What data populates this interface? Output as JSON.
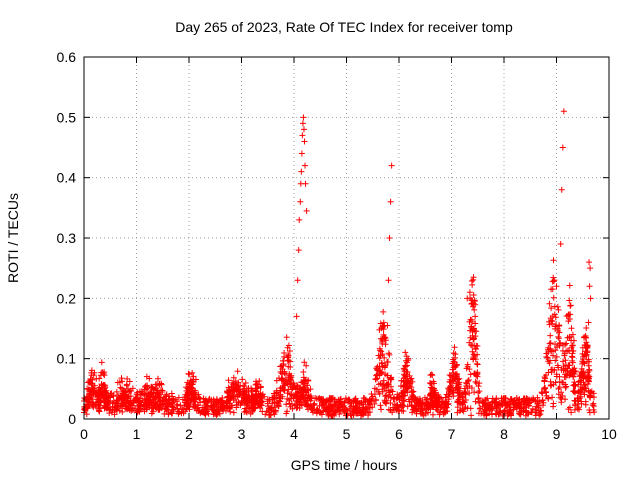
{
  "chart_data": {
    "type": "scatter",
    "title": "Day 265 of 2023, Rate Of TEC Index for receiver tomp",
    "xlabel": "GPS time / hours",
    "ylabel": "ROTI / TECUs",
    "xlim": [
      0,
      10
    ],
    "ylim": [
      0,
      0.6
    ],
    "xticks": [
      0,
      1,
      2,
      3,
      4,
      5,
      6,
      7,
      8,
      9,
      10
    ],
    "yticks": [
      0,
      0.1,
      0.2,
      0.3,
      0.4,
      0.5,
      0.6
    ],
    "xtick_labels": [
      "0",
      "1",
      "2",
      "3",
      "4",
      "5",
      "6",
      "7",
      "8",
      "9",
      "10"
    ],
    "ytick_labels": [
      "0",
      "0.1",
      "0.2",
      "0.3",
      "0.4",
      "0.5",
      "0.6"
    ],
    "grid": true,
    "marker": "+",
    "marker_color": "#ff0000",
    "baseline": {
      "x_range": [
        0,
        9.72
      ],
      "y_range": [
        0.005,
        0.035
      ]
    },
    "bursts": [
      {
        "center": 0.15,
        "width": 0.15,
        "height": 0.05
      },
      {
        "center": 0.35,
        "width": 0.08,
        "height": 0.06
      },
      {
        "center": 0.75,
        "width": 0.2,
        "height": 0.04
      },
      {
        "center": 1.3,
        "width": 0.3,
        "height": 0.04
      },
      {
        "center": 2.05,
        "width": 0.1,
        "height": 0.065
      },
      {
        "center": 2.9,
        "width": 0.2,
        "height": 0.06
      },
      {
        "center": 3.3,
        "width": 0.1,
        "height": 0.055
      },
      {
        "center": 3.85,
        "width": 0.15,
        "height": 0.12
      },
      {
        "center": 4.2,
        "width": 0.1,
        "height": 0.07
      },
      {
        "center": 5.7,
        "width": 0.15,
        "height": 0.15
      },
      {
        "center": 6.15,
        "width": 0.1,
        "height": 0.1
      },
      {
        "center": 6.65,
        "width": 0.1,
        "height": 0.05
      },
      {
        "center": 7.05,
        "width": 0.1,
        "height": 0.11
      },
      {
        "center": 7.4,
        "width": 0.1,
        "height": 0.23
      },
      {
        "center": 8.95,
        "width": 0.15,
        "height": 0.24
      },
      {
        "center": 9.25,
        "width": 0.1,
        "height": 0.2
      },
      {
        "center": 9.55,
        "width": 0.1,
        "height": 0.14
      }
    ],
    "outliers": [
      {
        "x": 4.05,
        "y": 0.17
      },
      {
        "x": 4.07,
        "y": 0.23
      },
      {
        "x": 4.09,
        "y": 0.28
      },
      {
        "x": 4.1,
        "y": 0.33
      },
      {
        "x": 4.12,
        "y": 0.36
      },
      {
        "x": 4.13,
        "y": 0.39
      },
      {
        "x": 4.14,
        "y": 0.41
      },
      {
        "x": 4.15,
        "y": 0.44
      },
      {
        "x": 4.16,
        "y": 0.47
      },
      {
        "x": 4.17,
        "y": 0.49
      },
      {
        "x": 4.18,
        "y": 0.5
      },
      {
        "x": 4.19,
        "y": 0.48
      },
      {
        "x": 4.2,
        "y": 0.46
      },
      {
        "x": 4.21,
        "y": 0.42
      },
      {
        "x": 4.22,
        "y": 0.39
      },
      {
        "x": 4.24,
        "y": 0.345
      },
      {
        "x": 5.8,
        "y": 0.23
      },
      {
        "x": 5.82,
        "y": 0.3
      },
      {
        "x": 5.84,
        "y": 0.36
      },
      {
        "x": 5.86,
        "y": 0.42
      },
      {
        "x": 5.78,
        "y": 0.155
      },
      {
        "x": 7.3,
        "y": 0.2
      },
      {
        "x": 7.35,
        "y": 0.21
      },
      {
        "x": 7.42,
        "y": 0.235
      },
      {
        "x": 7.45,
        "y": 0.17
      },
      {
        "x": 9.08,
        "y": 0.29
      },
      {
        "x": 9.1,
        "y": 0.38
      },
      {
        "x": 9.12,
        "y": 0.45
      },
      {
        "x": 9.14,
        "y": 0.51
      },
      {
        "x": 9.0,
        "y": 0.22
      },
      {
        "x": 9.62,
        "y": 0.26
      },
      {
        "x": 9.64,
        "y": 0.25
      },
      {
        "x": 9.63,
        "y": 0.22
      },
      {
        "x": 9.65,
        "y": 0.2
      },
      {
        "x": 9.61,
        "y": 0.16
      }
    ]
  }
}
